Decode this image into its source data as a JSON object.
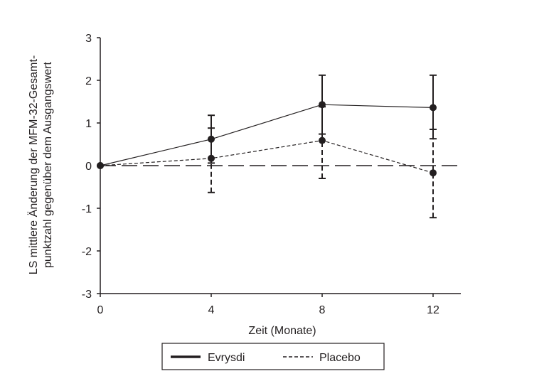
{
  "chart_data": {
    "type": "line",
    "title": "",
    "xlabel": "Zeit (Monate)",
    "ylabel_lines": [
      "LS mittlere Änderung der MFM-32-Gesamt-",
      "punktzahl gegenüber dem Ausgangswert"
    ],
    "x": [
      0,
      4,
      8,
      12
    ],
    "xticks": [
      "0",
      "4",
      "8",
      "12"
    ],
    "yticks": [
      "3",
      "2",
      "1",
      "0",
      "-1",
      "-2",
      "-3"
    ],
    "ylim": [
      -3,
      3
    ],
    "xlim": [
      0,
      13
    ],
    "reference_line_y": 0,
    "legend_position": "bottom-center",
    "series": [
      {
        "name": "Evrysdi",
        "style": "solid",
        "values": [
          0,
          0.62,
          1.43,
          1.36
        ],
        "err_low": [
          0,
          0.06,
          0.74,
          0.63
        ],
        "err_high": [
          0,
          1.18,
          2.12,
          2.12
        ]
      },
      {
        "name": "Placebo",
        "style": "dashed",
        "values": [
          0,
          0.17,
          0.59,
          -0.17
        ],
        "err_low": [
          0,
          -0.63,
          -0.3,
          -1.22
        ],
        "err_high": [
          0,
          0.88,
          1.38,
          0.85
        ]
      }
    ],
    "color": "#231f20"
  }
}
